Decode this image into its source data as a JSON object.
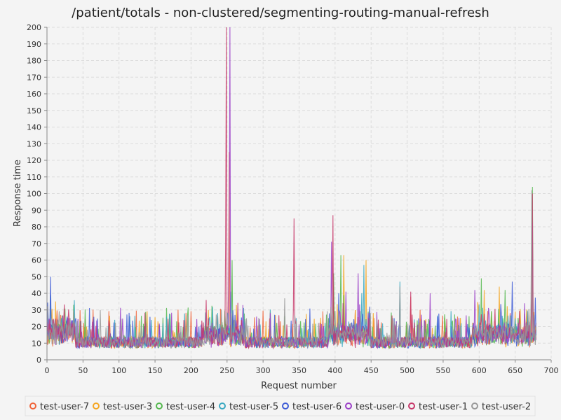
{
  "chart_data": {
    "type": "line",
    "title": "/patient/totals - non-clustered/segmenting-routing-manual-refresh",
    "xlabel": "Request number",
    "ylabel": "Response time",
    "xlim": [
      0,
      700
    ],
    "ylim": [
      0,
      200
    ],
    "x_ticks": [
      0,
      50,
      100,
      150,
      200,
      250,
      300,
      350,
      400,
      450,
      500,
      550,
      600,
      650,
      700
    ],
    "y_ticks": [
      0,
      10,
      20,
      30,
      40,
      50,
      60,
      70,
      80,
      90,
      100,
      110,
      120,
      130,
      140,
      150,
      160,
      170,
      180,
      190,
      200
    ],
    "grid": true,
    "legend_position": "bottom",
    "n_requests": 680,
    "series": [
      {
        "name": "test-user-7",
        "color": "#f0653b",
        "peaks": [
          [
            253,
            125
          ],
          [
            398,
            45
          ],
          [
            505,
            38
          ],
          [
            674,
            80
          ]
        ]
      },
      {
        "name": "test-user-3",
        "color": "#f5a623",
        "peaks": [
          [
            224,
            30
          ],
          [
            412,
            63
          ],
          [
            443,
            60
          ],
          [
            607,
            42
          ],
          [
            628,
            44
          ],
          [
            672,
            26
          ]
        ]
      },
      {
        "name": "test-user-4",
        "color": "#55b84f",
        "peaks": [
          [
            257,
            60
          ],
          [
            398,
            52
          ],
          [
            408,
            63
          ],
          [
            603,
            49
          ],
          [
            636,
            42
          ],
          [
            674,
            104
          ]
        ]
      },
      {
        "name": "test-user-5",
        "color": "#3aa8c1",
        "peaks": [
          [
            255,
            41
          ],
          [
            440,
            57
          ],
          [
            490,
            47
          ],
          [
            575,
            22
          ],
          [
            650,
            25
          ]
        ]
      },
      {
        "name": "test-user-6",
        "color": "#3d5bd6",
        "peaks": [
          [
            5,
            50
          ],
          [
            28,
            26
          ],
          [
            261,
            27
          ],
          [
            405,
            40
          ],
          [
            448,
            32
          ],
          [
            646,
            47
          ]
        ]
      },
      {
        "name": "test-user-0",
        "color": "#9b3fc7",
        "peaks": [
          [
            254,
            200
          ],
          [
            395,
            71
          ],
          [
            415,
            41
          ],
          [
            432,
            52
          ],
          [
            532,
            40
          ],
          [
            594,
            42
          ],
          [
            663,
            34
          ],
          [
            674,
            82
          ]
        ]
      },
      {
        "name": "test-user-1",
        "color": "#c7386a",
        "peaks": [
          [
            249,
            200
          ],
          [
            343,
            85
          ],
          [
            397,
            87
          ],
          [
            505,
            41
          ],
          [
            674,
            100
          ]
        ]
      },
      {
        "name": "test-user-2",
        "color": "#999999",
        "peaks": [
          [
            74,
            30
          ],
          [
            196,
            27
          ],
          [
            330,
            37
          ],
          [
            490,
            44
          ],
          [
            673,
            102
          ]
        ]
      }
    ]
  }
}
